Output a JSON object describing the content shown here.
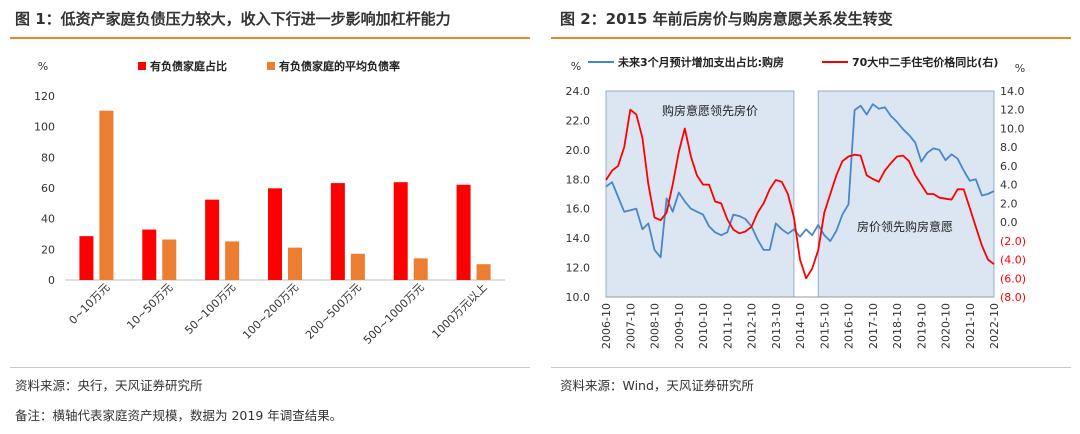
{
  "left": {
    "title": "图 1：低资产家庭负债压力较大，收入下行进一步影响加杠杆能力",
    "source": "资料来源：央行，天风证券研究所",
    "note": "备注：横轴代表家庭资产规模，数据为 2019 年调查结果。",
    "colors": {
      "s1": "#ff0000",
      "s2": "#ed7d31"
    },
    "chart_data": {
      "type": "bar",
      "ylabel": "%",
      "ylim": [
        0,
        120
      ],
      "yticks": [
        "0",
        "20",
        "40",
        "60",
        "80",
        "100",
        "120"
      ],
      "legend_position": "top",
      "categories": [
        "0~10万元",
        "10~50万元",
        "50~100万元",
        "100~200万元",
        "200~500万元",
        "500~1000万元",
        "1000万元以上"
      ],
      "series": [
        {
          "name": "有负债家庭占比",
          "values": [
            28.6,
            32.9,
            52.4,
            59.8,
            63.2,
            63.8,
            62.1
          ]
        },
        {
          "name": "有负债家庭的平均负债率",
          "values": [
            110.4,
            26.4,
            25.2,
            21.1,
            17.1,
            14.1,
            10.3
          ]
        }
      ]
    }
  },
  "right": {
    "title": "图 2：2015 年前后房价与购房意愿关系发生转变",
    "source": "资料来源：Wind，天风证券研究所",
    "colors": {
      "s1": "#4a86c8",
      "s2": "#ff0000",
      "shade": "#dbe6f2"
    },
    "chart_data": {
      "type": "line",
      "left_axis_unit": "%",
      "right_axis_unit": "%",
      "ylim_left": [
        10,
        24
      ],
      "ylim_right": [
        -8,
        14
      ],
      "yticks_left": [
        "10.0",
        "12.0",
        "14.0",
        "16.0",
        "18.0",
        "20.0",
        "22.0",
        "24.0"
      ],
      "yticks_right": [
        "(8.0)",
        "(6.0)",
        "(4.0)",
        "(2.0)",
        "0.0",
        "2.0",
        "4.0",
        "6.0",
        "8.0",
        "10.0",
        "12.0",
        "14.0"
      ],
      "xticks": [
        "2006-10",
        "2007-10",
        "2008-10",
        "2009-10",
        "2010-10",
        "2011-10",
        "2012-10",
        "2013-10",
        "2014-10",
        "2015-10",
        "2016-10",
        "2017-10",
        "2018-10",
        "2019-10",
        "2020-10",
        "2021-10",
        "2022-10"
      ],
      "x_start": "2006-10",
      "x_end": "2022-10",
      "shaded_periods": [
        [
          "2006-10",
          "2014-07"
        ],
        [
          "2015-07",
          "2022-10"
        ]
      ],
      "annotations": [
        "购房意愿领先房价",
        "房价领先购房意愿"
      ],
      "legend_position": "top",
      "series": [
        {
          "name": "未来3个月预计增加支出占比:购房",
          "axis": "left",
          "x": [
            "2006-10",
            "2007-01",
            "2007-04",
            "2007-07",
            "2007-10",
            "2008-01",
            "2008-04",
            "2008-07",
            "2008-10",
            "2009-01",
            "2009-04",
            "2009-07",
            "2009-10",
            "2010-01",
            "2010-04",
            "2010-07",
            "2010-10",
            "2011-01",
            "2011-04",
            "2011-07",
            "2011-10",
            "2012-01",
            "2012-04",
            "2012-07",
            "2012-10",
            "2013-01",
            "2013-04",
            "2013-07",
            "2013-10",
            "2014-01",
            "2014-04",
            "2014-07",
            "2014-10",
            "2015-01",
            "2015-04",
            "2015-07",
            "2015-10",
            "2016-01",
            "2016-04",
            "2016-07",
            "2016-10",
            "2017-01",
            "2017-04",
            "2017-07",
            "2017-10",
            "2018-01",
            "2018-04",
            "2018-07",
            "2018-10",
            "2019-01",
            "2019-04",
            "2019-07",
            "2019-10",
            "2020-01",
            "2020-04",
            "2020-07",
            "2020-10",
            "2021-01",
            "2021-04",
            "2021-07",
            "2021-10",
            "2022-01",
            "2022-04",
            "2022-07",
            "2022-10"
          ],
          "values": [
            17.5,
            17.8,
            16.8,
            15.8,
            15.9,
            16.0,
            14.6,
            15.0,
            13.2,
            12.7,
            16.7,
            15.8,
            17.1,
            16.5,
            16.0,
            15.8,
            15.6,
            14.8,
            14.4,
            14.2,
            14.4,
            15.6,
            15.5,
            15.3,
            14.8,
            13.9,
            13.2,
            13.2,
            15.0,
            14.6,
            14.3,
            14.6,
            14.1,
            14.6,
            14.2,
            14.9,
            14.2,
            13.8,
            14.5,
            15.6,
            16.3,
            22.7,
            23.0,
            22.4,
            23.1,
            22.8,
            22.9,
            22.3,
            21.9,
            21.4,
            21.0,
            20.5,
            19.2,
            19.8,
            20.1,
            20.0,
            19.3,
            19.7,
            19.4,
            18.6,
            17.9,
            18.0,
            16.9,
            17.0,
            17.2
          ]
        },
        {
          "name": "70大中二手住宅价格同比(右)",
          "axis": "right",
          "x": [
            "2006-10",
            "2007-01",
            "2007-04",
            "2007-07",
            "2007-10",
            "2008-01",
            "2008-04",
            "2008-07",
            "2008-10",
            "2009-01",
            "2009-04",
            "2009-07",
            "2009-10",
            "2010-01",
            "2010-04",
            "2010-07",
            "2010-10",
            "2011-01",
            "2011-04",
            "2011-07",
            "2011-10",
            "2012-01",
            "2012-04",
            "2012-07",
            "2012-10",
            "2013-01",
            "2013-04",
            "2013-07",
            "2013-10",
            "2014-01",
            "2014-04",
            "2014-07",
            "2014-10",
            "2015-01",
            "2015-04",
            "2015-07",
            "2015-10",
            "2016-01",
            "2016-04",
            "2016-07",
            "2016-10",
            "2017-01",
            "2017-04",
            "2017-07",
            "2017-10",
            "2018-01",
            "2018-04",
            "2018-07",
            "2018-10",
            "2019-01",
            "2019-04",
            "2019-07",
            "2019-10",
            "2020-01",
            "2020-04",
            "2020-07",
            "2020-10",
            "2021-01",
            "2021-04",
            "2021-07",
            "2021-10",
            "2022-01",
            "2022-04",
            "2022-07",
            "2022-10"
          ],
          "values": [
            4.5,
            5.5,
            6.0,
            8.0,
            12.0,
            11.5,
            9.0,
            4.0,
            0.5,
            0.2,
            1.0,
            4.0,
            7.5,
            10.0,
            7.0,
            5.0,
            4.0,
            4.0,
            2.2,
            2.0,
            0.3,
            -0.8,
            -1.2,
            -1.0,
            -0.5,
            1.0,
            2.0,
            3.5,
            4.5,
            4.3,
            3.0,
            0.5,
            -4.0,
            -6.0,
            -5.0,
            -3.0,
            1.0,
            3.0,
            5.0,
            6.5,
            7.0,
            7.2,
            7.1,
            5.0,
            4.6,
            4.3,
            5.5,
            6.3,
            7.0,
            7.1,
            6.5,
            5.0,
            4.0,
            3.0,
            3.0,
            2.6,
            2.5,
            2.4,
            3.5,
            3.5,
            1.5,
            -0.5,
            -2.5,
            -4.0,
            -4.5
          ]
        }
      ]
    }
  }
}
